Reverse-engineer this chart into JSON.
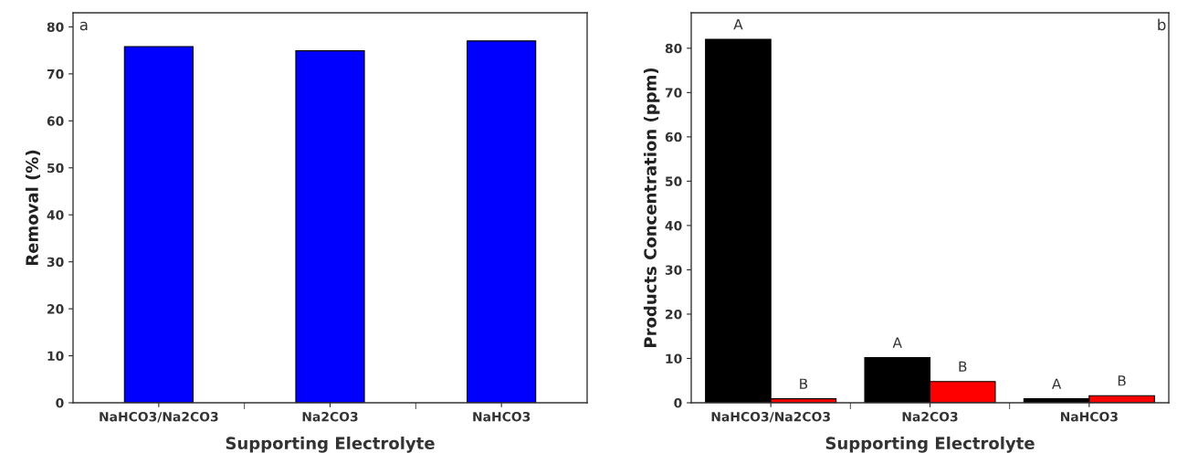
{
  "chart_data": [
    {
      "type": "bar",
      "categories": [
        "NaHCO3/Na2CO3",
        "Na2CO3",
        "NaHCO3"
      ],
      "xlabel": "Supporting Electrolyte",
      "ylabel": "Removal (%)",
      "series": [
        {
          "color": "#0000ff",
          "values": [
            75.8,
            74.9,
            77.0
          ]
        }
      ],
      "ylim": [
        0,
        83
      ],
      "yticks": [
        0,
        10,
        20,
        30,
        40,
        50,
        60,
        70,
        80
      ],
      "grid": false,
      "legend": false,
      "annotations": [
        "a"
      ]
    },
    {
      "type": "bar",
      "categories": [
        "NaHCO3/Na2CO3",
        "Na2CO3",
        "NaHCO3"
      ],
      "xlabel": "Supporting Electrolyte",
      "ylabel": "Products Concentration (ppm)",
      "series": [
        {
          "name": "A",
          "color": "#000000",
          "values": [
            82.0,
            10.2,
            0.9
          ]
        },
        {
          "name": "B",
          "color": "#ff0000",
          "values": [
            0.9,
            4.8,
            1.6
          ]
        }
      ],
      "ylim": [
        0,
        88
      ],
      "yticks": [
        0,
        10,
        20,
        30,
        40,
        50,
        60,
        70,
        80
      ],
      "grid": false,
      "legend": false,
      "annotations": [
        "b"
      ]
    }
  ]
}
